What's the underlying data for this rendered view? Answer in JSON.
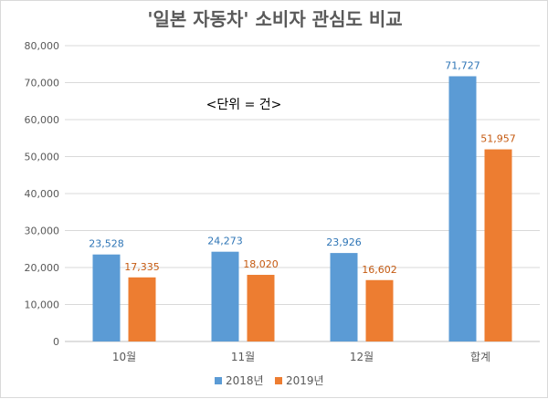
{
  "chart_data": {
    "type": "bar",
    "title": "'일본 자동차' 소비자 관심도 비교",
    "annotation": "<단위 = 건>",
    "categories": [
      "10월",
      "11월",
      "12월",
      "합계"
    ],
    "series": [
      {
        "name": "2018년",
        "values": [
          23528,
          24273,
          23926,
          71727
        ],
        "labels": [
          "23,528",
          "24,273",
          "23,926",
          "71,727"
        ],
        "color": "#5b9bd5",
        "label_color": "#2e75b6"
      },
      {
        "name": "2019년",
        "values": [
          17335,
          18020,
          16602,
          51957
        ],
        "labels": [
          "17,335",
          "18,020",
          "16,602",
          "51,957"
        ],
        "color": "#ed7d31",
        "label_color": "#c55a11"
      }
    ],
    "ylim": [
      0,
      80000
    ],
    "yticks": [
      0,
      10000,
      20000,
      30000,
      40000,
      50000,
      60000,
      70000,
      80000
    ],
    "ytick_labels": [
      "0",
      "10,000",
      "20,000",
      "30,000",
      "40,000",
      "50,000",
      "60,000",
      "70,000",
      "80,000"
    ],
    "grid": true,
    "legend_position": "bottom"
  }
}
